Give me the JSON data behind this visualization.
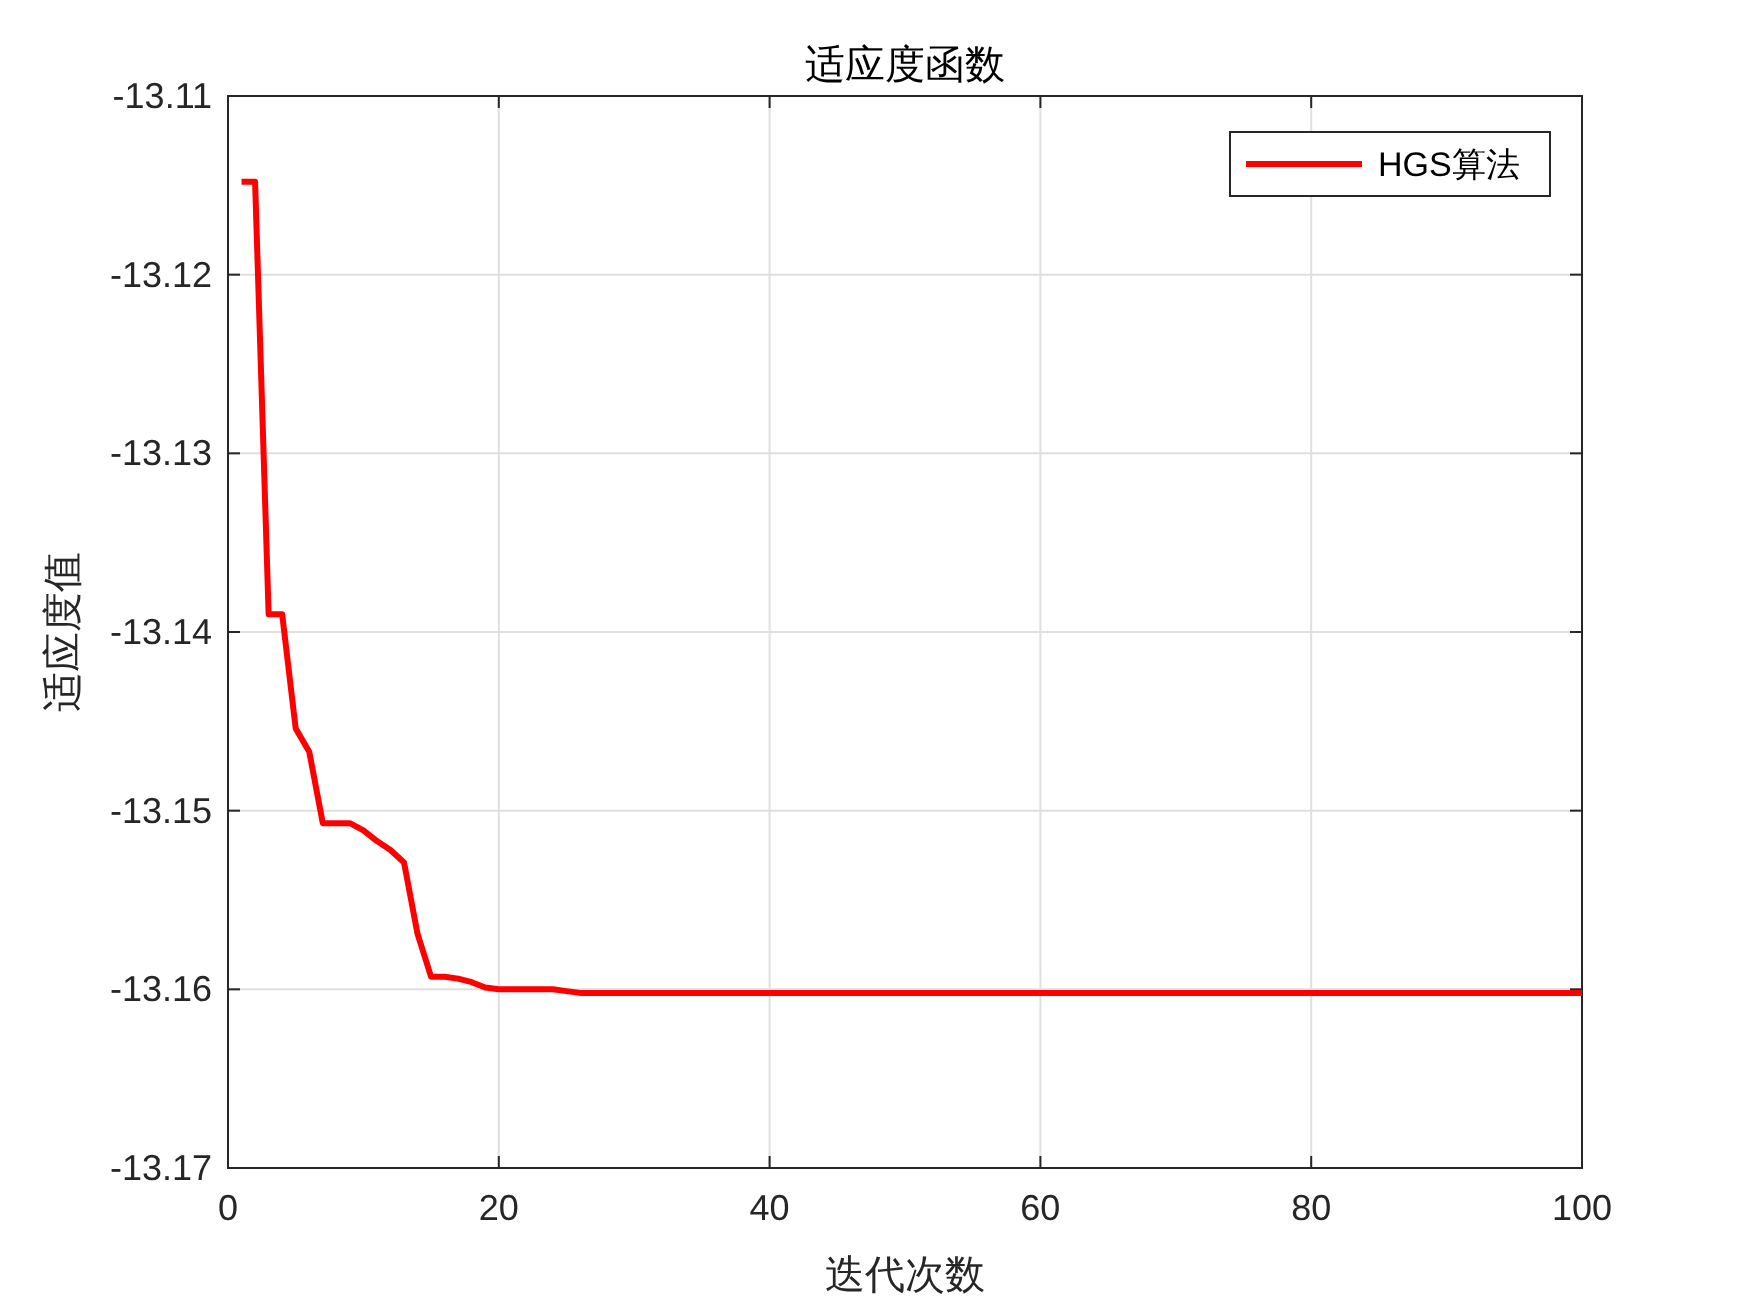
{
  "chart_data": {
    "type": "line",
    "title": "适应度函数",
    "xlabel": "迭代次数",
    "ylabel": "适应度值",
    "xlim": [
      0,
      100
    ],
    "xticks": [
      0,
      20,
      40,
      60,
      80,
      100
    ],
    "ylim": [
      -13.17,
      -13.11
    ],
    "yticks": [
      -13.17,
      -13.16,
      -13.15,
      -13.14,
      -13.13,
      -13.12,
      -13.11
    ],
    "grid": true,
    "legend": "top right",
    "series": [
      {
        "name": "HGS算法",
        "color": "#ff0000",
        "x": [
          1,
          2,
          3,
          4,
          5,
          6,
          7,
          8,
          9,
          10,
          11,
          12,
          13,
          14,
          15,
          16,
          17,
          18,
          19,
          20,
          21,
          22,
          23,
          24,
          25,
          26,
          100
        ],
        "values": [
          -13.1148,
          -13.1148,
          -13.139,
          -13.139,
          -13.1454,
          -13.1467,
          -13.1507,
          -13.1507,
          -13.1507,
          -13.1511,
          -13.1517,
          -13.1522,
          -13.1529,
          -13.1569,
          -13.1593,
          -13.1593,
          -13.1594,
          -13.1596,
          -13.1599,
          -13.16,
          -13.16,
          -13.16,
          -13.16,
          -13.16,
          -13.1601,
          -13.1602,
          -13.1602
        ]
      }
    ]
  }
}
